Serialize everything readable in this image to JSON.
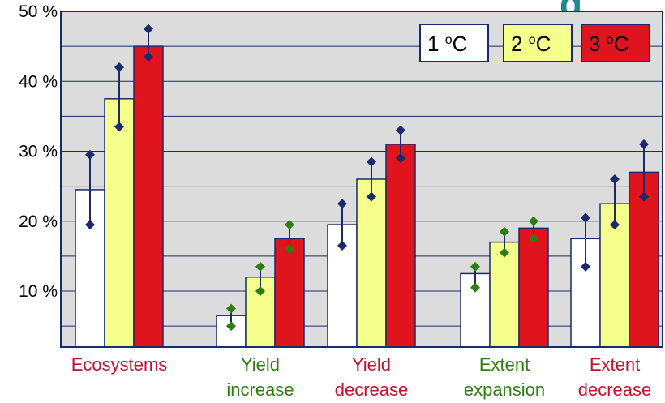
{
  "chart_data": {
    "type": "bar",
    "categories": [
      "Ecosystems",
      "Yield increase",
      "Yield decrease",
      "Extent expansion",
      "Extent decrease"
    ],
    "category_lines": [
      [
        "Ecosystems"
      ],
      [
        "Yield",
        "increase"
      ],
      [
        "Yield",
        "decrease"
      ],
      [
        "Extent",
        "expansion"
      ],
      [
        "Extent",
        "decrease"
      ]
    ],
    "category_colors": [
      "#c8102e",
      "#2e7d12",
      "#c8102e",
      "#2e7d12",
      "#c8102e"
    ],
    "series": [
      {
        "name": "1 °C",
        "legend_main": "1 ",
        "legend_sup": "o",
        "legend_unit": "C",
        "color": "#ffffff",
        "values": [
          24.5,
          6.5,
          19.5,
          12.5,
          17.5
        ],
        "err_low": [
          19.5,
          5.0,
          16.5,
          10.5,
          13.5
        ],
        "err_high": [
          29.5,
          7.5,
          22.5,
          13.5,
          20.5
        ]
      },
      {
        "name": "2 °C",
        "legend_main": "2 ",
        "legend_sup": "o",
        "legend_unit": "C",
        "color": "#f5ff8c",
        "values": [
          37.5,
          12.0,
          26.0,
          17.0,
          22.5
        ],
        "err_low": [
          33.5,
          10.0,
          23.5,
          15.5,
          19.5
        ],
        "err_high": [
          42.0,
          13.5,
          28.5,
          18.5,
          26.0
        ]
      },
      {
        "name": "3 °C",
        "legend_main": "3 ",
        "legend_sup": "o",
        "legend_unit": "C",
        "color": "#e0141c",
        "values": [
          45.0,
          17.5,
          31.0,
          19.0,
          27.0
        ],
        "err_low": [
          43.5,
          16.0,
          29.0,
          17.5,
          23.5
        ],
        "err_high": [
          47.5,
          19.5,
          33.0,
          20.0,
          31.0
        ]
      }
    ],
    "error_marker_colors": [
      "#1a2a6c",
      "#2e7d12",
      "#1a2a6c",
      "#2e7d12",
      "#1a2a6c"
    ],
    "y_ticks": [
      "10 %",
      "20 %",
      "30 %",
      "40 %",
      "50 %"
    ],
    "y_tick_values": [
      10,
      20,
      30,
      40,
      50
    ],
    "ylim": [
      2,
      50
    ],
    "y_minor_step": 5,
    "grid": true,
    "legend_position": "top-right",
    "plot_background": "#dcdcdc"
  }
}
